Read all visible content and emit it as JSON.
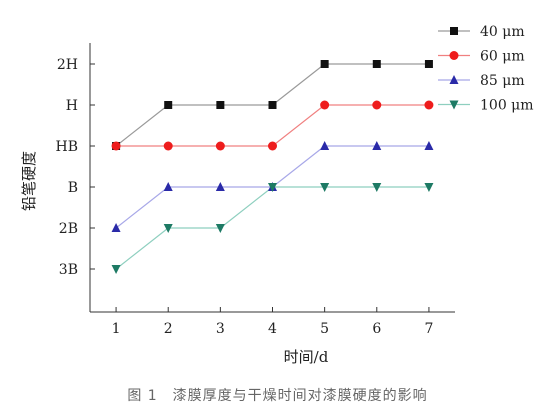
{
  "chart_data": {
    "type": "line",
    "xlabel": "时间/d",
    "ylabel": "铅笔硬度",
    "x": [
      1,
      2,
      3,
      4,
      5,
      6,
      7
    ],
    "xticks": [
      "1",
      "2",
      "3",
      "4",
      "5",
      "6",
      "7"
    ],
    "yticks": [
      "3B",
      "2B",
      "B",
      "HB",
      "H",
      "2H"
    ],
    "xlim": [
      0.5,
      7.5
    ],
    "ylim": [
      "3B",
      "2H"
    ],
    "legend": "top-right",
    "grid": false,
    "series": [
      {
        "name": "40 μm",
        "values": [
          "HB",
          "H",
          "H",
          "H",
          "2H",
          "2H",
          "2H"
        ],
        "color": "#9a9a9a",
        "marker": "square",
        "marker_color": "#111111"
      },
      {
        "name": "60 μm",
        "values": [
          "HB",
          "HB",
          "HB",
          "HB",
          "H",
          "H",
          "H"
        ],
        "color": "#f08080",
        "marker": "circle",
        "marker_color": "#ee1c1c"
      },
      {
        "name": "85 μm",
        "values": [
          "2B",
          "B",
          "B",
          "B",
          "HB",
          "HB",
          "HB"
        ],
        "color": "#a8a8e8",
        "marker": "triangle-up",
        "marker_color": "#2a2aa8"
      },
      {
        "name": "100 μm",
        "values": [
          "3B",
          "2B",
          "2B",
          "B",
          "B",
          "B",
          "B"
        ],
        "color": "#8ecfbf",
        "marker": "triangle-down",
        "marker_color": "#1d7a64"
      }
    ]
  },
  "caption": "图 1　漆膜厚度与干燥时间对漆膜硬度的影响"
}
